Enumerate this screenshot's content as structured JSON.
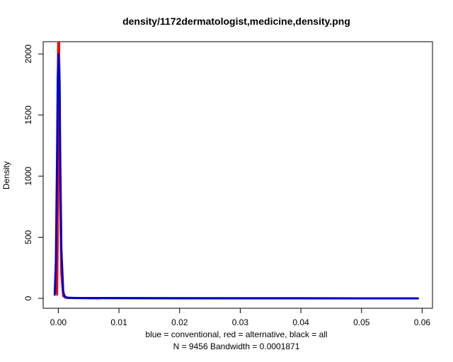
{
  "chart_data": {
    "type": "line",
    "title": "density/1172dermatologist,medicine,density.png",
    "xlabel_line1": "blue = conventional, red = alternative, black = all",
    "xlabel_line2": "N = 9456   Bandwidth = 0.0001871",
    "ylabel": "Density",
    "xlim": [
      -0.0025,
      0.0617
    ],
    "ylim": [
      -81,
      2100
    ],
    "x_ticks": [
      0.0,
      0.01,
      0.02,
      0.03,
      0.04,
      0.05,
      0.06
    ],
    "x_tick_labels": [
      "0.00",
      "0.01",
      "0.02",
      "0.03",
      "0.04",
      "0.05",
      "0.06"
    ],
    "y_ticks": [
      0,
      500,
      1000,
      1500,
      2000
    ],
    "y_tick_labels": [
      "0",
      "500",
      "1000",
      "1500",
      "2000"
    ],
    "grid": false,
    "series": [
      {
        "color": "#000000",
        "x": [
          -0.0005,
          -0.0003,
          -0.0001,
          0.0,
          0.0001,
          0.0002,
          0.0003,
          0.0005,
          0.0008,
          0.0012,
          0.002,
          0.006,
          0.02,
          0.04,
          0.0592
        ],
        "y": [
          50,
          400,
          1500,
          2100,
          2100,
          1700,
          900,
          250,
          40,
          8,
          3,
          2,
          1,
          0.5,
          0
        ]
      },
      {
        "color": "#ff0000",
        "x": [
          -0.0002,
          -0.0001,
          0.0,
          0.0001,
          0.0002,
          0.0003,
          0.0005,
          0.0008,
          0.0012,
          0.002,
          0.004,
          0.0068
        ],
        "y": [
          30,
          500,
          2100,
          2100,
          1600,
          800,
          200,
          20,
          5,
          3,
          2,
          0
        ]
      },
      {
        "color": "#0000cd",
        "x": [
          -0.0006,
          -0.0004,
          -0.0002,
          -0.0001,
          0.0,
          0.0002,
          0.0003,
          0.0005,
          0.0008,
          0.001,
          0.0015,
          0.003,
          0.01,
          0.02,
          0.03,
          0.04,
          0.05,
          0.0593
        ],
        "y": [
          30,
          300,
          1200,
          1800,
          2000,
          1800,
          1200,
          400,
          60,
          15,
          5,
          3,
          2,
          1.5,
          1,
          0.5,
          0.3,
          0
        ]
      }
    ]
  }
}
